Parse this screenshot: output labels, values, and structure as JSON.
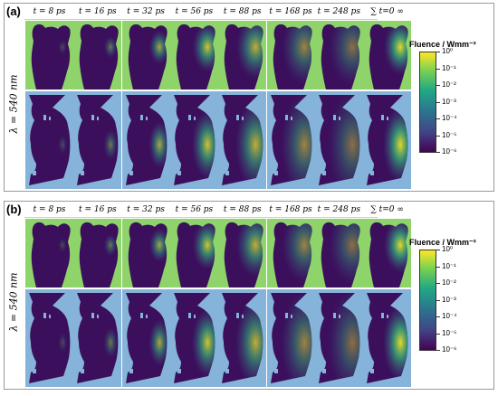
{
  "panels": [
    {
      "label": "(a)",
      "row_label": "λ = 540 nm",
      "columns": [
        "t = 8 ps",
        "t = 16 ps",
        "t = 32 ps",
        "t = 56 ps",
        "t = 88 ps",
        "t = 168 ps",
        "t = 248 ps",
        "∑ t=0 ∞"
      ],
      "colorbar": {
        "title": "Fluence / Wmm⁻²",
        "ticks": [
          "10⁰",
          "10⁻¹",
          "10⁻²",
          "10⁻³",
          "10⁻⁴",
          "10⁻⁵",
          "10⁻⁶"
        ]
      }
    },
    {
      "label": "(b)",
      "row_label": "λ = 540 nm",
      "columns": [
        "t = 8 ps",
        "t = 16 ps",
        "t = 32 ps",
        "t = 56 ps",
        "t = 88 ps",
        "t = 168 ps",
        "t = 248 ps",
        "∑ t=0 ∞"
      ],
      "colorbar": {
        "title": "Fluence / Wmm⁻²",
        "ticks": [
          "10⁰",
          "10⁻¹",
          "10⁻²",
          "10⁻³",
          "10⁻⁴",
          "10⁻⁵",
          "10⁻⁶"
        ]
      }
    }
  ],
  "colors": {
    "top_row_bg": "#8fd46a",
    "bottom_row_bg": "#86b3d9",
    "tissue": "#3b0f5c",
    "hot": "#f2e324"
  }
}
